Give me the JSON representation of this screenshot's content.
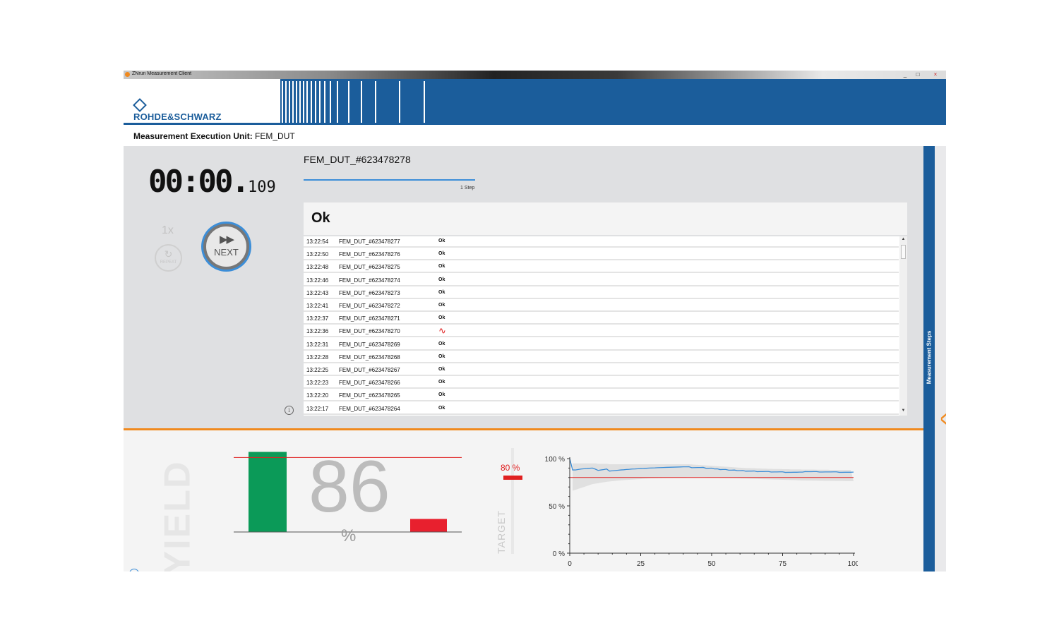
{
  "window": {
    "title": "ZNrun Measurement Client",
    "minimize": "_",
    "maximize": "□",
    "close": "×"
  },
  "header": {
    "logo_text": "ROHDE&SCHWARZ"
  },
  "execution_unit": {
    "label": "Measurement Execution Unit:",
    "value": "FEM_DUT"
  },
  "timer": {
    "main": "00:00.",
    "ms": "109"
  },
  "controls": {
    "repeat_count": "1x",
    "repeat_label": "REPEAT",
    "repeat_icon": "↻",
    "next_label": "NEXT",
    "next_icon": "▶▶"
  },
  "current": {
    "dut": "FEM_DUT_#623478278",
    "progress_label": "1 Step",
    "progress": 1.0,
    "result": "Ok"
  },
  "history": [
    {
      "time": "13:22:54",
      "dut": "FEM_DUT_#623478277",
      "status": "Ok"
    },
    {
      "time": "13:22:50",
      "dut": "FEM_DUT_#623478276",
      "status": "Ok"
    },
    {
      "time": "13:22:48",
      "dut": "FEM_DUT_#623478275",
      "status": "Ok"
    },
    {
      "time": "13:22:46",
      "dut": "FEM_DUT_#623478274",
      "status": "Ok"
    },
    {
      "time": "13:22:43",
      "dut": "FEM_DUT_#623478273",
      "status": "Ok"
    },
    {
      "time": "13:22:41",
      "dut": "FEM_DUT_#623478272",
      "status": "Ok"
    },
    {
      "time": "13:22:37",
      "dut": "FEM_DUT_#623478271",
      "status": "Ok"
    },
    {
      "time": "13:22:36",
      "dut": "FEM_DUT_#623478270",
      "status": "∿",
      "bad": true
    },
    {
      "time": "13:22:31",
      "dut": "FEM_DUT_#623478269",
      "status": "Ok"
    },
    {
      "time": "13:22:28",
      "dut": "FEM_DUT_#623478268",
      "status": "Ok"
    },
    {
      "time": "13:22:25",
      "dut": "FEM_DUT_#623478267",
      "status": "Ok"
    },
    {
      "time": "13:22:23",
      "dut": "FEM_DUT_#623478266",
      "status": "Ok"
    },
    {
      "time": "13:22:20",
      "dut": "FEM_DUT_#623478265",
      "status": "Ok"
    },
    {
      "time": "13:22:17",
      "dut": "FEM_DUT_#623478264",
      "status": "Ok"
    }
  ],
  "side_panel": {
    "label": "Measurement Steps",
    "chevron": "<"
  },
  "yield": {
    "label": "YIELD",
    "value": "86",
    "unit": "%",
    "target_label": "TARGET",
    "target_value": "80 %",
    "colors": {
      "pass": "#0b9a58",
      "fail": "#e8202e",
      "target": "#e02020",
      "trend": "#3c8ed8"
    }
  },
  "chart_data": [
    {
      "type": "bar",
      "categories": [
        "pass",
        "fail"
      ],
      "values": [
        86,
        14
      ],
      "ylim": [
        0,
        100
      ],
      "target": 80
    },
    {
      "type": "line",
      "x": [
        0,
        1,
        2,
        3,
        4,
        5,
        6,
        7,
        8,
        9,
        10,
        11,
        12,
        13,
        14,
        15,
        16,
        17,
        18,
        19,
        20,
        21,
        22,
        23,
        24,
        25,
        26,
        27,
        28,
        29,
        30,
        31,
        32,
        33,
        34,
        35,
        36,
        37,
        38,
        39,
        40,
        41,
        42,
        43,
        44,
        45,
        46,
        47,
        48,
        49,
        50,
        51,
        52,
        53,
        54,
        55,
        56,
        57,
        58,
        59,
        60,
        61,
        62,
        63,
        64,
        65,
        66,
        67,
        68,
        69,
        70,
        71,
        72,
        73,
        74,
        75,
        76,
        77,
        78,
        79,
        80,
        81,
        82,
        83,
        84,
        85,
        86,
        87,
        88,
        89,
        90,
        91,
        92,
        93,
        94,
        95,
        96,
        97,
        98,
        99,
        100
      ],
      "series": [
        {
          "values": [
            100,
            88,
            88,
            88.5,
            89,
            89.3,
            89.5,
            89.8,
            90,
            88.9,
            87.5,
            88,
            88.4,
            89,
            86.8,
            87.1,
            87.4,
            87.7,
            88,
            88.2,
            88.5,
            88.7,
            89,
            89.1,
            89.3,
            89.5,
            89.6,
            89.8,
            90,
            90.1,
            90.2,
            90.4,
            90.5,
            90.6,
            90.7,
            90.8,
            90.9,
            91,
            91.1,
            91.2,
            91.3,
            91.3,
            91.4,
            90.4,
            90.5,
            90.6,
            90.6,
            90.7,
            89.8,
            89.8,
            89.9,
            89.1,
            89.2,
            88.4,
            88.5,
            88.5,
            87.8,
            87.8,
            87.9,
            87.3,
            87.3,
            87.4,
            86.7,
            86.8,
            86.8,
            86.9,
            86.2,
            86.3,
            86.3,
            86.4,
            86.4,
            85.8,
            85.9,
            85.9,
            86,
            86,
            85.4,
            85.5,
            85.5,
            85.6,
            85.6,
            85.7,
            85.7,
            86.3,
            86.2,
            86.2,
            86.3,
            86.3,
            85.8,
            85.8,
            85.9,
            85.9,
            85.9,
            86,
            86,
            85.5,
            85.5,
            85.6,
            85.6,
            85.6,
            85.7
          ]
        }
      ],
      "band_lower": [
        null,
        66,
        67,
        68,
        69,
        70,
        71,
        72,
        73,
        73.5,
        74,
        74.5,
        75,
        75.5,
        75.8,
        76.1,
        76.4,
        76.7,
        77,
        77.2,
        77.4,
        77.6,
        77.8,
        78,
        78.2,
        78.4,
        78.6,
        78.8,
        79,
        79.1,
        79.2,
        79.3,
        79.4,
        79.5,
        79.6,
        79.7,
        79.8,
        79.9,
        80,
        80.1,
        80.2,
        80.3,
        80.4,
        80.4,
        80.4,
        80.4,
        80.4,
        80.4,
        80.3,
        80.2,
        80.1,
        80,
        79.9,
        79.8,
        79.7,
        79.6,
        79.5,
        79.4,
        79.3,
        79.2,
        79.1,
        79,
        78.9,
        78.8,
        78.7,
        78.6,
        78.5,
        78.4,
        78.3,
        78.2,
        78.1,
        78,
        77.9,
        77.8,
        77.7,
        77.6,
        77.5,
        77.4,
        77.3,
        77.2,
        77.1,
        77,
        76.9,
        76.9,
        76.8,
        76.8,
        76.7,
        76.7,
        76.6,
        76.6,
        76.5,
        76.5,
        76.4,
        76.4,
        76.3,
        76.3,
        76.3,
        76.2,
        76.2,
        76.2,
        76.2
      ],
      "band_upper": [
        null,
        95,
        95,
        95,
        95,
        95,
        95,
        95,
        95,
        95,
        94.5,
        94.5,
        94.5,
        94.5,
        94,
        94,
        94,
        94,
        94,
        94,
        94,
        94,
        94,
        94,
        94,
        94,
        94,
        94,
        94,
        94,
        94,
        94,
        94,
        94,
        94,
        94,
        94,
        94,
        94,
        94,
        94,
        94,
        94,
        93.8,
        93.6,
        93.4,
        93.2,
        93,
        92.8,
        92.6,
        92.4,
        92.2,
        92,
        91.8,
        91.6,
        91.4,
        91.2,
        91,
        90.8,
        90.6,
        90.4,
        90.2,
        90,
        90,
        89.8,
        89.8,
        89.6,
        89.6,
        89.4,
        89.4,
        89.2,
        89.2,
        89,
        89,
        89,
        88.8,
        88.8,
        88.8,
        88.6,
        88.6,
        88.6,
        88.6,
        88.4,
        88.4,
        88.4,
        88.4,
        88.4,
        88.2,
        88.2,
        88.2,
        88.2,
        88.2,
        88,
        88,
        88,
        88,
        88,
        88,
        88,
        88
      ],
      "target": 80,
      "xlim": [
        0,
        100
      ],
      "ylim": [
        0,
        100
      ],
      "xticks": [
        0,
        25,
        50,
        75,
        100
      ],
      "yticks": [
        "0 %",
        "50 %",
        "100 %"
      ]
    }
  ]
}
